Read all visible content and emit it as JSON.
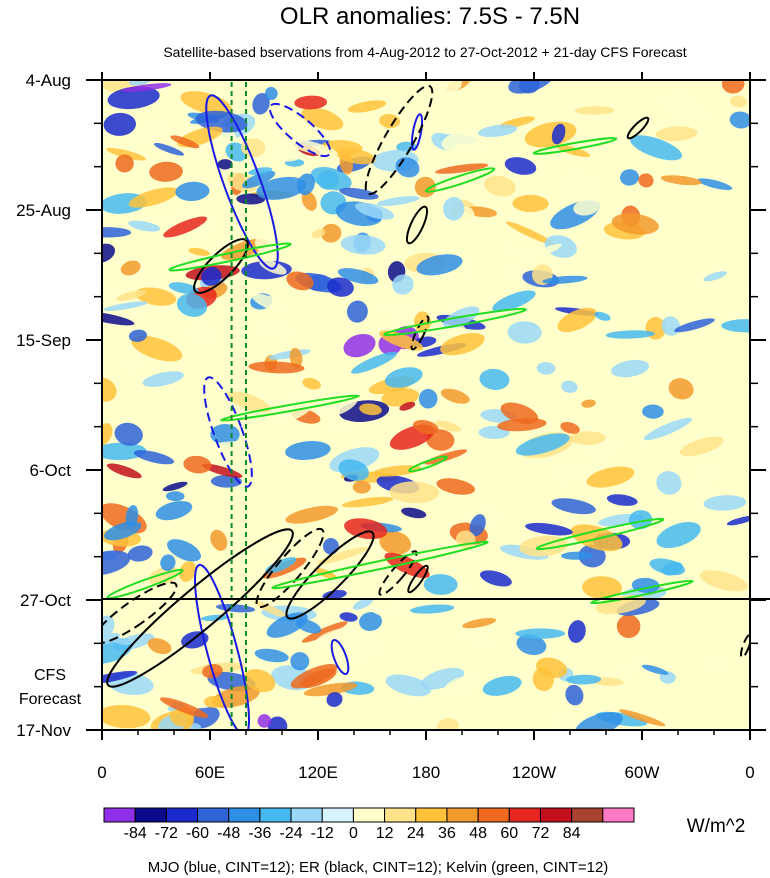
{
  "chart_data": {
    "type": "heatmap",
    "title": "OLR anomalies: 7.5S - 7.5N",
    "subtitle": "Satellite-based bservations from 4-Aug-2012 to 27-Oct-2012 + 21-day CFS Forecast",
    "x_ticks": [
      "0",
      "60E",
      "120E",
      "180",
      "120W",
      "60W",
      "0"
    ],
    "x_range_deg": [
      0,
      360
    ],
    "y_ticks": [
      "4-Aug",
      "25-Aug",
      "15-Sep",
      "6-Oct",
      "27-Oct",
      "17-Nov"
    ],
    "y_range": [
      "2012-08-04",
      "2012-11-17"
    ],
    "observation_end": "27-Oct",
    "forecast_label": [
      "CFS",
      "Forecast"
    ],
    "colorbar": {
      "labels": [
        "-84",
        "-72",
        "-60",
        "-48",
        "-36",
        "-24",
        "-12",
        "0",
        "12",
        "24",
        "36",
        "48",
        "60",
        "72",
        "84"
      ],
      "colors": [
        "#8f2fe8",
        "#0a0a8a",
        "#1a2acc",
        "#2f63d8",
        "#2f8fe6",
        "#46b8f0",
        "#9bd8f7",
        "#d7f3ff",
        "#ffffcc",
        "#ffe38a",
        "#ffc23a",
        "#f39a2c",
        "#ef6a1e",
        "#e6271f",
        "#c2111c",
        "#a8422e",
        "#ff79c4"
      ],
      "unit": "W/m^2"
    },
    "legend_text": "MJO (blue, CINT=12); ER (black, CINT=12); Kelvin (green, CINT=12)",
    "vertical_lines_lon": [
      72,
      80
    ],
    "series": [
      {
        "name": "MJO",
        "color": "#1a1ae6"
      },
      {
        "name": "ER",
        "color": "#000000"
      },
      {
        "name": "Kelvin",
        "color": "#22dd22"
      }
    ]
  }
}
